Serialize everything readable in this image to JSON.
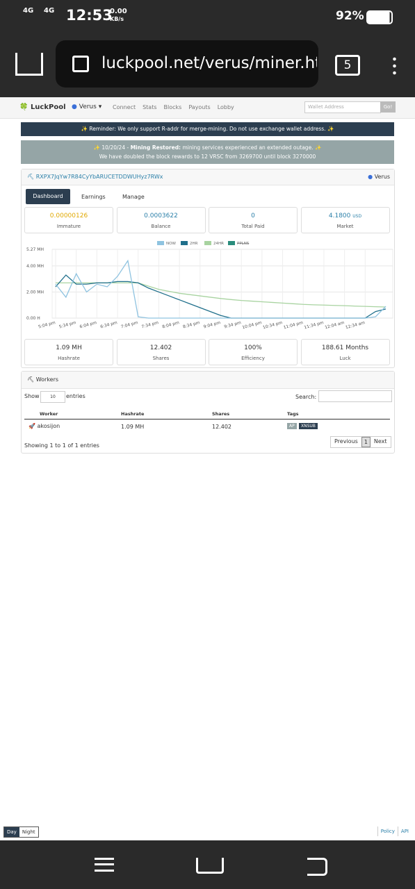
{
  "status_bar": {
    "network1": "4G",
    "network2": "4G",
    "time": "12:53",
    "speed": "0.00",
    "speed_unit": "KB/s",
    "battery": "92%"
  },
  "browser": {
    "url": "luckpool.net/verus/miner.ht",
    "tabs": "5"
  },
  "nav": {
    "brand": "LuckPool",
    "coin": "Verus",
    "links": [
      "Connect",
      "Stats",
      "Blocks",
      "Payouts",
      "Lobby"
    ],
    "search_placeholder": "Wallet Address",
    "button": "Go!"
  },
  "alerts": {
    "reminder": "Reminder: We only support R-addr for merge-mining. Do not use exchange wallet address.",
    "notice_date": "10/20/24 -",
    "notice_bold": "Mining Restored:",
    "notice_text": "mining services experienced an extended outage.",
    "notice_line2": "We have doubled the block rewards to 12 VRSC from 3269700 until block 3270000"
  },
  "miner": {
    "address": "RXPX7JqYw7R84CyYbARUCETDDWUHyz7RWx",
    "coin": "Verus",
    "tabs": [
      "Dashboard",
      "Earnings",
      "Manage"
    ],
    "stats": [
      {
        "value": "0.00000126",
        "label": "Immature"
      },
      {
        "value": "0.0003622",
        "label": "Balance"
      },
      {
        "value": "0",
        "label": "Total Paid"
      },
      {
        "value": "4.1800",
        "unit": "USD",
        "label": "Market"
      }
    ],
    "bottom_stats": [
      {
        "value": "1.09 MH",
        "label": "Hashrate"
      },
      {
        "value": "12.402",
        "label": "Shares"
      },
      {
        "value": "100%",
        "label": "Efficiency"
      },
      {
        "value": "188.61 Months",
        "label": "Luck"
      }
    ]
  },
  "chart_data": {
    "type": "line",
    "categories": [
      "5:04 pm",
      null,
      "5:34 pm",
      null,
      "6:04 pm",
      null,
      "6:34 pm",
      null,
      "7:04 pm",
      null,
      "7:34 pm",
      null,
      "8:04 pm",
      null,
      "8:34 pm",
      null,
      "9:04 pm",
      null,
      "9:34 pm",
      null,
      "10:04 pm",
      null,
      "10:34 pm",
      null,
      "11:04 pm",
      null,
      "11:34 pm",
      null,
      "12:04 am",
      null,
      "12:34 am",
      null,
      null
    ],
    "series": [
      {
        "name": "NOW",
        "color": "#8fc3e0",
        "values": [
          2.6,
          1.6,
          3.4,
          2.0,
          2.6,
          2.4,
          3.2,
          4.4,
          0.1,
          0,
          0,
          0,
          0,
          0,
          0,
          0,
          0,
          0,
          0,
          0,
          0,
          0,
          0,
          0,
          0,
          0,
          0,
          0,
          0,
          0,
          0,
          0.1,
          0.9
        ]
      },
      {
        "name": "2HR",
        "color": "#1f6f8b",
        "values": [
          2.4,
          3.3,
          2.6,
          2.6,
          2.7,
          2.7,
          2.8,
          2.8,
          2.7,
          2.3,
          2.0,
          1.7,
          1.4,
          1.1,
          0.8,
          0.5,
          0.2,
          0,
          0,
          0,
          0,
          0,
          0,
          0,
          0,
          0,
          0,
          0,
          0,
          0,
          0,
          0.5,
          0.7
        ]
      },
      {
        "name": "24HR",
        "color": "#a8d3a0",
        "values": [
          2.7,
          2.7,
          2.7,
          2.7,
          2.7,
          2.7,
          2.7,
          2.7,
          2.7,
          2.45,
          2.2,
          2.05,
          1.9,
          1.8,
          1.7,
          1.6,
          1.5,
          1.42,
          1.35,
          1.3,
          1.25,
          1.2,
          1.15,
          1.1,
          1.05,
          1.02,
          1.0,
          0.97,
          0.95,
          0.92,
          0.9,
          0.87,
          0.85
        ]
      }
    ],
    "disabled_legend": {
      "name": "PPLNS",
      "color": "#2a8c7c"
    },
    "ylim": [
      0,
      5.27
    ],
    "yticks": [
      {
        "value": 0,
        "label": "0.00 H"
      },
      {
        "value": 2,
        "label": "2.00 MH"
      },
      {
        "value": 4,
        "label": "4.00 MH"
      },
      {
        "value": 5.27,
        "label": "5.27 MH"
      }
    ],
    "grid": true
  },
  "workers": {
    "title": "Workers",
    "show": "Show",
    "length": "10",
    "entries": "entries",
    "search": "Search:",
    "columns": [
      "Worker",
      "Hashrate",
      "Shares",
      "Tags"
    ],
    "rows": [
      [
        "akosijon",
        "1.09 MH",
        "12.402",
        [
          "AP",
          "XNSUB"
        ]
      ]
    ],
    "info": "Showing 1 to 1 of 1 entries",
    "pager": [
      "Previous",
      "1",
      "Next"
    ]
  },
  "footer": {
    "themes": [
      "Day",
      "Night"
    ],
    "links": [
      "Policy",
      "API"
    ]
  }
}
